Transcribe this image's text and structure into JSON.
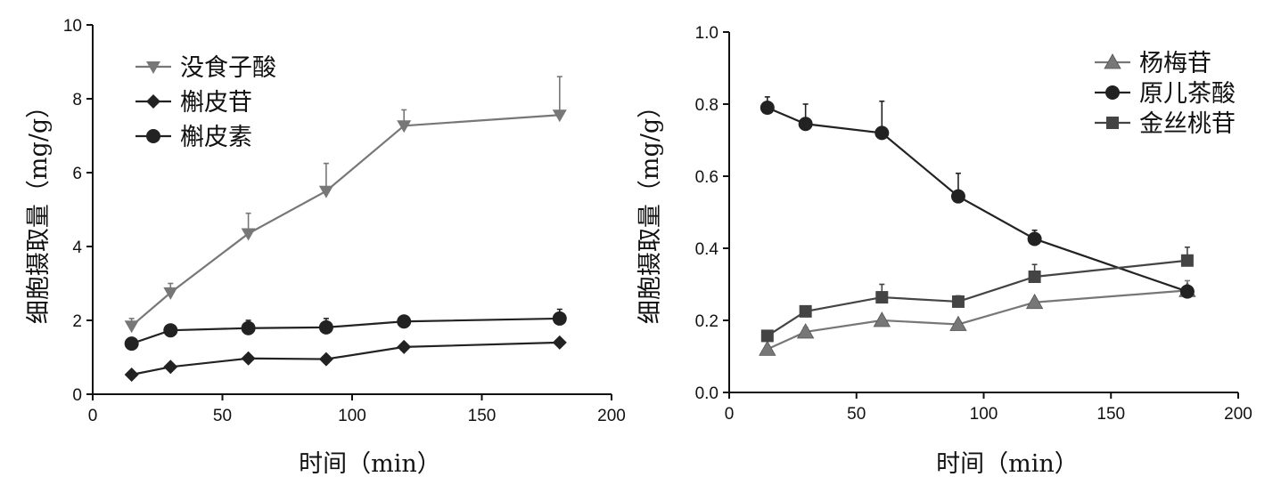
{
  "chart_data": [
    {
      "type": "line",
      "xlabel": "时间（min）",
      "ylabel": "细胞摄取量（mg/g）",
      "xlim": [
        0,
        200
      ],
      "ylim": [
        0,
        10
      ],
      "xticks": [
        "0",
        "50",
        "100",
        "150",
        "200"
      ],
      "yticks": [
        "0",
        "2",
        "4",
        "6",
        "8",
        "10"
      ],
      "legend_position": "top-left",
      "x": [
        15,
        30,
        60,
        90,
        120,
        180
      ],
      "series": [
        {
          "name": "没食子酸",
          "marker": "triangle-down",
          "color": "#777777",
          "values": [
            1.85,
            2.75,
            4.35,
            5.5,
            7.27,
            7.56
          ],
          "error_upper": [
            2.05,
            3.0,
            4.9,
            6.25,
            7.7,
            8.6
          ]
        },
        {
          "name": "槲皮苷",
          "marker": "diamond",
          "color": "#222222",
          "values": [
            0.53,
            0.74,
            0.97,
            0.95,
            1.28,
            1.4
          ],
          "error_upper": [
            0.58,
            0.8,
            1.03,
            1.0,
            1.33,
            1.46
          ]
        },
        {
          "name": "槲皮素",
          "marker": "circle",
          "color": "#222222",
          "values": [
            1.37,
            1.73,
            1.79,
            1.81,
            1.97,
            2.05
          ],
          "error_upper": [
            1.5,
            1.82,
            2.0,
            2.05,
            2.05,
            2.3
          ]
        }
      ]
    },
    {
      "type": "line",
      "xlabel": "时间（min）",
      "ylabel": "细胞摄取量（mg/g）",
      "xlim": [
        0,
        200
      ],
      "ylim": [
        0,
        1.0
      ],
      "xticks": [
        "0",
        "50",
        "100",
        "150",
        "200"
      ],
      "yticks": [
        "0.0",
        "0.2",
        "0.4",
        "0.6",
        "0.8",
        "1.0"
      ],
      "legend_position": "top-right",
      "x": [
        15,
        30,
        60,
        90,
        120,
        180
      ],
      "series": [
        {
          "name": "杨梅苷",
          "marker": "triangle-up",
          "color": "#777777",
          "values": [
            0.12,
            0.168,
            0.2,
            0.189,
            0.25,
            0.283
          ],
          "error_upper": [
            0.12,
            0.18,
            0.2,
            0.189,
            0.25,
            0.31
          ]
        },
        {
          "name": "原儿茶酸",
          "marker": "circle",
          "color": "#222222",
          "values": [
            0.79,
            0.745,
            0.72,
            0.544,
            0.426,
            0.28
          ],
          "error_upper": [
            0.82,
            0.8,
            0.808,
            0.608,
            0.45,
            0.28
          ]
        },
        {
          "name": "金丝桃苷",
          "marker": "square",
          "color": "#444444",
          "values": [
            0.157,
            0.225,
            0.264,
            0.252,
            0.321,
            0.366
          ],
          "error_upper": [
            0.157,
            0.235,
            0.3,
            0.268,
            0.355,
            0.403
          ]
        }
      ]
    }
  ]
}
